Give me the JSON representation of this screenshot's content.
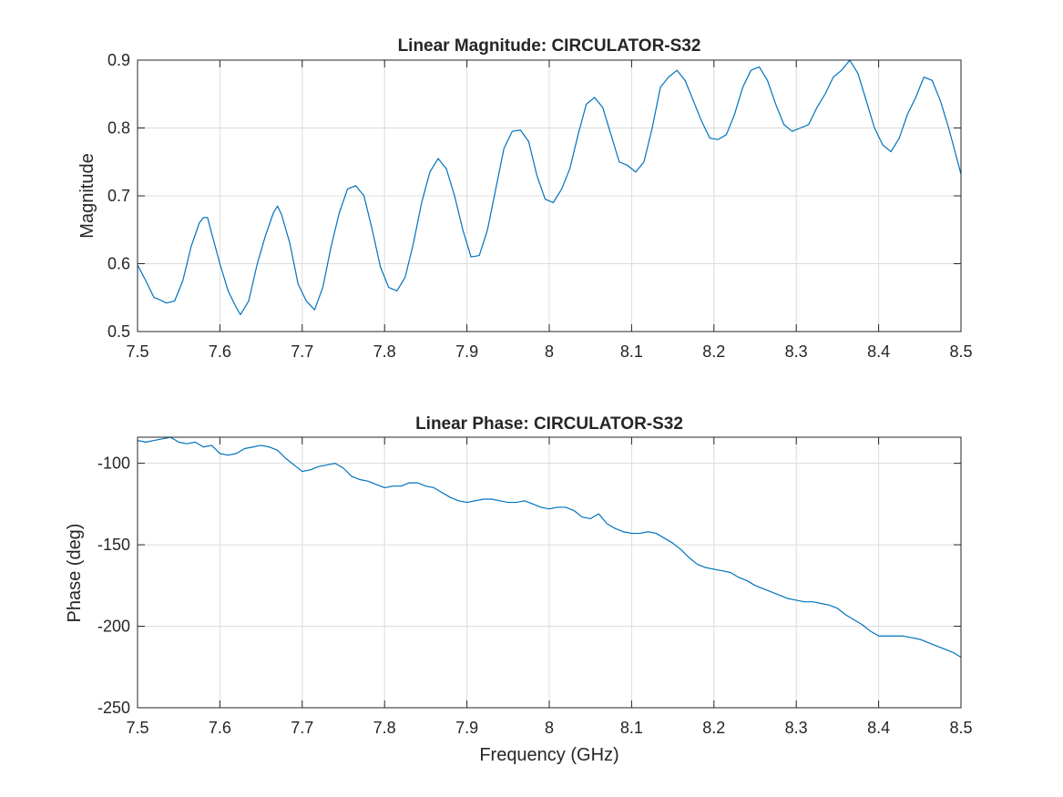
{
  "colors": {
    "series": "#0072BD",
    "axis": "#262626",
    "grid": "#dcdcdc",
    "background": "#ffffff"
  },
  "chart_data": [
    {
      "type": "line",
      "title": "Linear Magnitude: CIRCULATOR-S32",
      "xlabel": "",
      "ylabel": "Magnitude",
      "xlim": [
        7.5,
        8.5
      ],
      "ylim": [
        0.5,
        0.9
      ],
      "xticks": [
        7.5,
        7.6,
        7.7,
        7.8,
        7.9,
        8,
        8.1,
        8.2,
        8.3,
        8.4,
        8.5
      ],
      "xtick_labels": [
        "7.5",
        "7.6",
        "7.7",
        "7.8",
        "7.9",
        "8",
        "8.1",
        "8.2",
        "8.3",
        "8.4",
        "8.5"
      ],
      "yticks": [
        0.5,
        0.6,
        0.7,
        0.8,
        0.9
      ],
      "ytick_labels": [
        "0.5",
        "0.6",
        "0.7",
        "0.8",
        "0.9"
      ],
      "grid": true,
      "series": [
        {
          "color": "#0072BD",
          "x": [
            7.5,
            7.51,
            7.52,
            7.525,
            7.535,
            7.545,
            7.555,
            7.565,
            7.575,
            7.58,
            7.585,
            7.59,
            7.6,
            7.61,
            7.62,
            7.625,
            7.635,
            7.645,
            7.655,
            7.665,
            7.67,
            7.675,
            7.685,
            7.695,
            7.705,
            7.715,
            7.725,
            7.735,
            7.745,
            7.755,
            7.765,
            7.775,
            7.785,
            7.795,
            7.805,
            7.815,
            7.825,
            7.835,
            7.845,
            7.855,
            7.865,
            7.875,
            7.885,
            7.895,
            7.905,
            7.915,
            7.925,
            7.935,
            7.945,
            7.955,
            7.965,
            7.975,
            7.985,
            7.995,
            8.005,
            8.015,
            8.025,
            8.035,
            8.045,
            8.055,
            8.065,
            8.075,
            8.085,
            8.095,
            8.105,
            8.115,
            8.125,
            8.135,
            8.145,
            8.155,
            8.165,
            8.175,
            8.185,
            8.195,
            8.205,
            8.215,
            8.225,
            8.235,
            8.245,
            8.255,
            8.265,
            8.275,
            8.285,
            8.295,
            8.305,
            8.315,
            8.325,
            8.335,
            8.345,
            8.355,
            8.365,
            8.375,
            8.385,
            8.395,
            8.405,
            8.415,
            8.425,
            8.435,
            8.445,
            8.455,
            8.465,
            8.475,
            8.485,
            8.495,
            8.5
          ],
          "values": [
            0.598,
            0.575,
            0.55,
            0.548,
            0.542,
            0.545,
            0.575,
            0.625,
            0.66,
            0.668,
            0.668,
            0.645,
            0.6,
            0.56,
            0.535,
            0.525,
            0.545,
            0.598,
            0.64,
            0.675,
            0.685,
            0.672,
            0.63,
            0.57,
            0.545,
            0.532,
            0.565,
            0.625,
            0.675,
            0.71,
            0.715,
            0.7,
            0.65,
            0.595,
            0.565,
            0.56,
            0.58,
            0.63,
            0.69,
            0.735,
            0.755,
            0.74,
            0.7,
            0.65,
            0.61,
            0.612,
            0.65,
            0.71,
            0.77,
            0.795,
            0.797,
            0.78,
            0.73,
            0.695,
            0.69,
            0.71,
            0.74,
            0.79,
            0.835,
            0.845,
            0.83,
            0.79,
            0.75,
            0.745,
            0.735,
            0.75,
            0.8,
            0.86,
            0.875,
            0.885,
            0.87,
            0.84,
            0.81,
            0.785,
            0.783,
            0.79,
            0.82,
            0.86,
            0.885,
            0.89,
            0.87,
            0.835,
            0.805,
            0.795,
            0.8,
            0.805,
            0.83,
            0.85,
            0.875,
            0.885,
            0.9,
            0.88,
            0.84,
            0.8,
            0.775,
            0.765,
            0.785,
            0.82,
            0.845,
            0.875,
            0.87,
            0.84,
            0.8,
            0.755,
            0.732
          ]
        }
      ]
    },
    {
      "type": "line",
      "title": "Linear Phase: CIRCULATOR-S32",
      "xlabel": "Frequency (GHz)",
      "ylabel": "Phase (deg)",
      "xlim": [
        7.5,
        8.5
      ],
      "ylim": [
        -250,
        -84
      ],
      "xticks": [
        7.5,
        7.6,
        7.7,
        7.8,
        7.9,
        8,
        8.1,
        8.2,
        8.3,
        8.4,
        8.5
      ],
      "xtick_labels": [
        "7.5",
        "7.6",
        "7.7",
        "7.8",
        "7.9",
        "8",
        "8.1",
        "8.2",
        "8.3",
        "8.4",
        "8.5"
      ],
      "yticks": [
        -100,
        -150,
        -200,
        -250
      ],
      "ytick_labels": [
        "-100",
        "-150",
        "-200",
        "-250"
      ],
      "grid": true,
      "series": [
        {
          "color": "#0072BD",
          "x": [
            7.5,
            7.51,
            7.52,
            7.53,
            7.54,
            7.55,
            7.56,
            7.57,
            7.58,
            7.59,
            7.6,
            7.61,
            7.62,
            7.63,
            7.64,
            7.65,
            7.66,
            7.67,
            7.68,
            7.69,
            7.7,
            7.71,
            7.72,
            7.73,
            7.74,
            7.75,
            7.76,
            7.77,
            7.78,
            7.79,
            7.8,
            7.81,
            7.82,
            7.83,
            7.84,
            7.85,
            7.86,
            7.87,
            7.88,
            7.89,
            7.9,
            7.91,
            7.92,
            7.93,
            7.94,
            7.95,
            7.96,
            7.97,
            7.98,
            7.99,
            8.0,
            8.01,
            8.02,
            8.03,
            8.04,
            8.05,
            8.06,
            8.07,
            8.08,
            8.09,
            8.1,
            8.11,
            8.12,
            8.13,
            8.14,
            8.15,
            8.16,
            8.17,
            8.18,
            8.19,
            8.2,
            8.21,
            8.22,
            8.23,
            8.24,
            8.25,
            8.26,
            8.27,
            8.28,
            8.29,
            8.3,
            8.31,
            8.32,
            8.33,
            8.34,
            8.35,
            8.36,
            8.37,
            8.38,
            8.39,
            8.4,
            8.41,
            8.42,
            8.43,
            8.44,
            8.45,
            8.46,
            8.47,
            8.48,
            8.49,
            8.5
          ],
          "values": [
            -86,
            -87,
            -86,
            -85,
            -84,
            -87,
            -88,
            -87,
            -90,
            -89,
            -94,
            -95,
            -94,
            -91,
            -90,
            -89,
            -90,
            -92,
            -97,
            -101,
            -105,
            -104,
            -102,
            -101,
            -100,
            -103,
            -108,
            -110,
            -111,
            -113,
            -115,
            -114,
            -114,
            -112,
            -112,
            -114,
            -115,
            -118,
            -121,
            -123,
            -124,
            -123,
            -122,
            -122,
            -123,
            -124,
            -124,
            -123,
            -125,
            -127,
            -128,
            -127,
            -127,
            -129,
            -133,
            -134,
            -131,
            -137,
            -140,
            -142,
            -143,
            -143,
            -142,
            -143,
            -146,
            -149,
            -153,
            -158,
            -162,
            -164,
            -165,
            -166,
            -167,
            -170,
            -172,
            -175,
            -177,
            -179,
            -181,
            -183,
            -184,
            -185,
            -185,
            -186,
            -187,
            -189,
            -193,
            -196,
            -199,
            -203,
            -206,
            -206,
            -206,
            -206,
            -207,
            -208,
            -210,
            -212,
            -214,
            -216,
            -219
          ]
        }
      ]
    }
  ]
}
